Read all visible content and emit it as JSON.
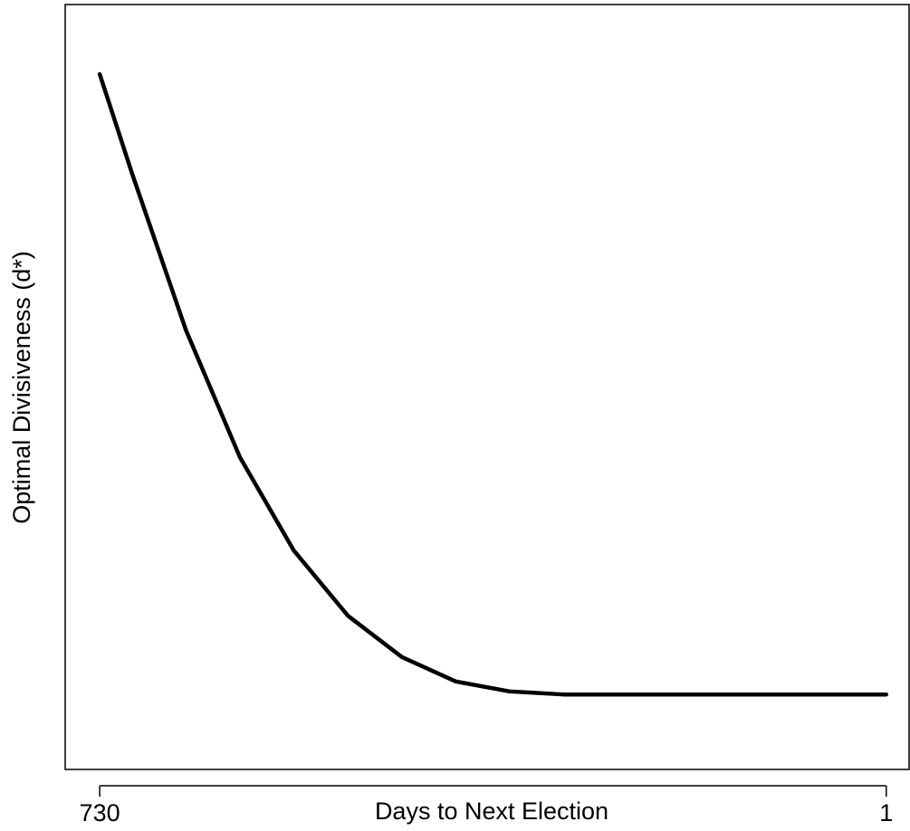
{
  "chart_data": {
    "type": "line",
    "x_label": "Days to Next Election",
    "y_label": "Optimal Divisiveness (d*)",
    "x": [
      730,
      700,
      650,
      600,
      550,
      500,
      450,
      400,
      350,
      300,
      250,
      1
    ],
    "series": [
      {
        "color": "#000000",
        "values": [
          0.909,
          0.779,
          0.574,
          0.408,
          0.286,
          0.201,
          0.147,
          0.115,
          0.102,
          0.098,
          0.098,
          0.098
        ]
      }
    ],
    "xlim": [
      762,
      -21
    ],
    "ylim": [
      0,
      1
    ],
    "xticks": [
      730,
      1
    ]
  }
}
